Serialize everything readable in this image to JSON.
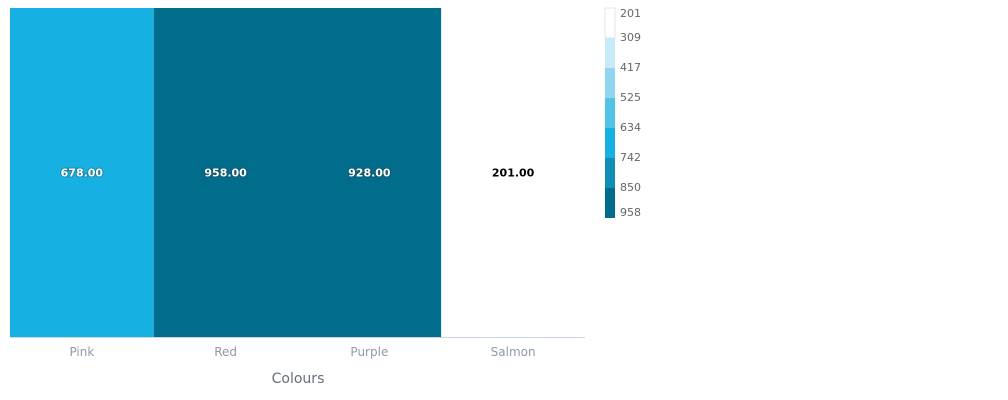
{
  "chart_data": {
    "type": "heatmap",
    "xlabel": "Colours",
    "categories": [
      "Pink",
      "Red",
      "Purple",
      "Salmon"
    ],
    "values": [
      678,
      958,
      928,
      201
    ],
    "value_labels": [
      "678.00",
      "958.00",
      "928.00",
      "201.00"
    ],
    "legend": {
      "placement": "right",
      "ticks": [
        "201",
        "309",
        "417",
        "525",
        "634",
        "742",
        "850",
        "958"
      ],
      "colors": [
        "#ffffff",
        "#c6eaf7",
        "#8fd6ee",
        "#52c2e6",
        "#16b1e2",
        "#0f8fb7",
        "#006d8d"
      ]
    }
  }
}
